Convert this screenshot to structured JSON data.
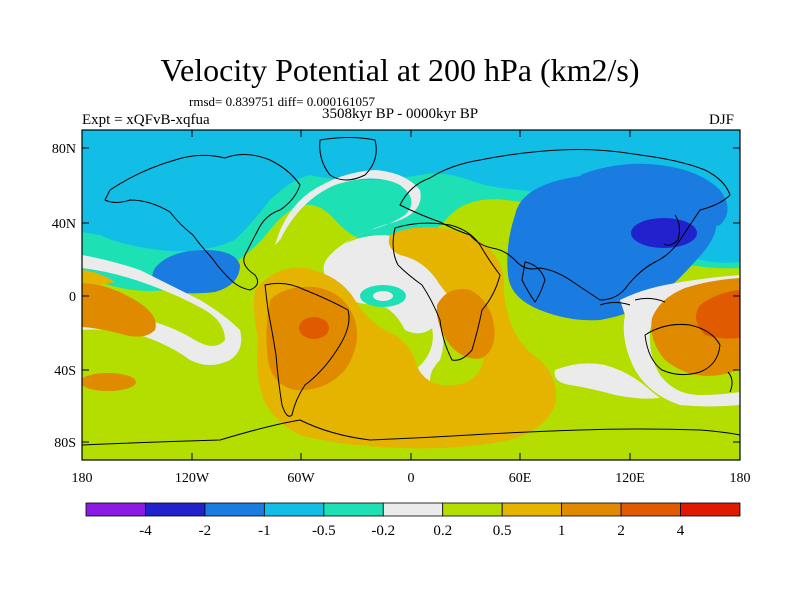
{
  "title": "Velocity Potential at 200 hPa (km2/s)",
  "stats": "rmsd= 0.839751 diff= 0.000161057",
  "period": "3508kyr BP - 0000kyr BP",
  "experiment": "Expt = xQFvB-xqfua",
  "season": "DJF",
  "lat_labels": [
    "80N",
    "40N",
    "0",
    "40S",
    "80S"
  ],
  "lon_labels": [
    "180",
    "120W",
    "60W",
    "0",
    "60E",
    "120E",
    "180"
  ],
  "colorbar": {
    "colors": [
      "#8a1ae4",
      "#2222cc",
      "#1a7be0",
      "#12bde6",
      "#1de0b5",
      "#ebebeb",
      "#b4de00",
      "#e5b400",
      "#e08a00",
      "#e05a00",
      "#e01a00"
    ],
    "labels": [
      "-4",
      "-2",
      "-1",
      "-0.5",
      "-0.2",
      "0.2",
      "0.5",
      "1",
      "2",
      "4"
    ]
  },
  "palette": {
    "neutral": "#ebebeb",
    "cyan": "#1de0b5",
    "sky": "#12bde6",
    "blue": "#1a7be0",
    "deep_blue": "#2222cc",
    "lime": "#b4de00",
    "gold": "#e5b400",
    "orange": "#e08a00",
    "red_orange": "#e05a00",
    "red": "#e01a00"
  }
}
